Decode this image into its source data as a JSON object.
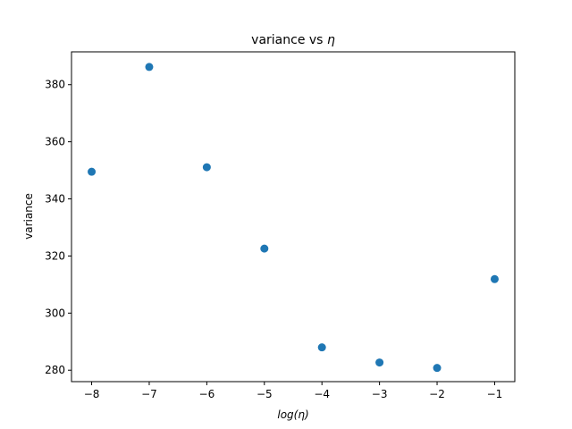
{
  "chart_data": {
    "type": "scatter",
    "title": "variance vs η",
    "title_text": "variance vs ",
    "title_symbol": "η",
    "xlabel": "log(η)",
    "ylabel": "variance",
    "x": [
      -8,
      -7,
      -6,
      -5,
      -4,
      -3,
      -2,
      -1
    ],
    "y": [
      349.5,
      386.2,
      351.1,
      322.6,
      288.0,
      282.7,
      280.8,
      311.9
    ],
    "xlim": [
      -8.35,
      -0.65
    ],
    "ylim": [
      276.0,
      391.5
    ],
    "xticks": [
      -8,
      -7,
      -6,
      -5,
      -4,
      -3,
      -2,
      -1
    ],
    "yticks": [
      280,
      300,
      320,
      340,
      360,
      380
    ],
    "marker_color": "#1f77b4",
    "grid": false,
    "legend": false
  }
}
